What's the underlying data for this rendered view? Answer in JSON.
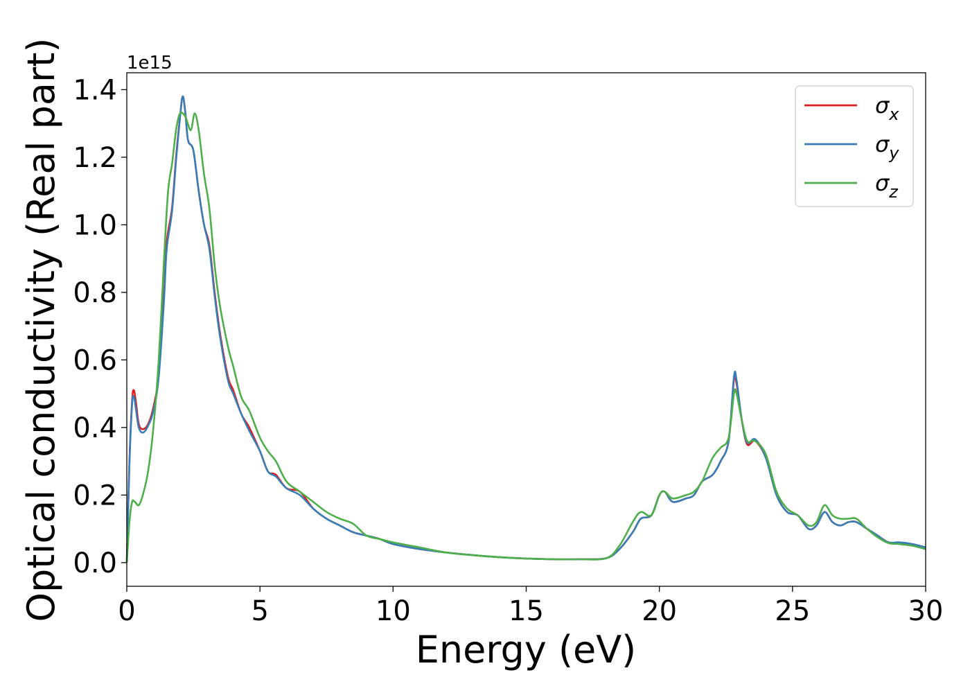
{
  "chart_data": {
    "type": "line",
    "title": "",
    "xlabel": "Energy (eV)",
    "ylabel": "Optical conductivity (Real part)",
    "y_offset_text": "1e15",
    "xlim": [
      0,
      30
    ],
    "ylim": [
      -0.07,
      1.45
    ],
    "y_scale_factor": 1000000000000000.0,
    "xticks": [
      "0",
      "5",
      "10",
      "15",
      "20",
      "25",
      "30"
    ],
    "xtick_values": [
      0,
      5,
      10,
      15,
      20,
      25,
      30
    ],
    "yticks": [
      "0.0",
      "0.2",
      "0.4",
      "0.6",
      "0.8",
      "1.0",
      "1.2",
      "1.4"
    ],
    "ytick_values": [
      0.0,
      0.2,
      0.4,
      0.6,
      0.8,
      1.0,
      1.2,
      1.4
    ],
    "grid": false,
    "legend_position": "top-right",
    "series": [
      {
        "name": "σx",
        "legend_base": "σ",
        "legend_sub": "x",
        "color": "#e41a1c",
        "points": [
          [
            0,
            0
          ],
          [
            0.1,
            0.3
          ],
          [
            0.2,
            0.48
          ],
          [
            0.27,
            0.51
          ],
          [
            0.35,
            0.47
          ],
          [
            0.45,
            0.41
          ],
          [
            0.6,
            0.395
          ],
          [
            0.8,
            0.41
          ],
          [
            1.0,
            0.46
          ],
          [
            1.2,
            0.56
          ],
          [
            1.4,
            0.8
          ],
          [
            1.5,
            0.95
          ],
          [
            1.7,
            1.05
          ],
          [
            1.85,
            1.2
          ],
          [
            2.0,
            1.32
          ],
          [
            2.1,
            1.38
          ],
          [
            2.2,
            1.33
          ],
          [
            2.3,
            1.25
          ],
          [
            2.5,
            1.22
          ],
          [
            2.7,
            1.1
          ],
          [
            2.9,
            1.0
          ],
          [
            3.1,
            0.94
          ],
          [
            3.3,
            0.8
          ],
          [
            3.5,
            0.68
          ],
          [
            3.8,
            0.55
          ],
          [
            4.0,
            0.51
          ],
          [
            4.3,
            0.44
          ],
          [
            4.6,
            0.4
          ],
          [
            5.0,
            0.33
          ],
          [
            5.3,
            0.27
          ],
          [
            5.6,
            0.26
          ],
          [
            6.0,
            0.22
          ],
          [
            6.5,
            0.21
          ],
          [
            7.0,
            0.16
          ],
          [
            7.5,
            0.13
          ],
          [
            8.0,
            0.11
          ],
          [
            8.5,
            0.09
          ],
          [
            9.0,
            0.08
          ],
          [
            9.5,
            0.07
          ],
          [
            10,
            0.055
          ],
          [
            11,
            0.04
          ],
          [
            12,
            0.03
          ],
          [
            13,
            0.022
          ],
          [
            14,
            0.016
          ],
          [
            15,
            0.012
          ],
          [
            16,
            0.01
          ],
          [
            17,
            0.01
          ],
          [
            18,
            0.013
          ],
          [
            18.5,
            0.04
          ],
          [
            19,
            0.09
          ],
          [
            19.3,
            0.13
          ],
          [
            19.7,
            0.14
          ],
          [
            20.0,
            0.2
          ],
          [
            20.2,
            0.21
          ],
          [
            20.5,
            0.18
          ],
          [
            21,
            0.19
          ],
          [
            21.3,
            0.2
          ],
          [
            21.6,
            0.24
          ],
          [
            22,
            0.26
          ],
          [
            22.3,
            0.3
          ],
          [
            22.6,
            0.36
          ],
          [
            22.8,
            0.54
          ],
          [
            22.9,
            0.53
          ],
          [
            23.1,
            0.42
          ],
          [
            23.3,
            0.35
          ],
          [
            23.6,
            0.36
          ],
          [
            24.0,
            0.31
          ],
          [
            24.4,
            0.2
          ],
          [
            24.8,
            0.15
          ],
          [
            25.2,
            0.14
          ],
          [
            25.6,
            0.1
          ],
          [
            25.9,
            0.11
          ],
          [
            26.2,
            0.15
          ],
          [
            26.5,
            0.12
          ],
          [
            26.8,
            0.11
          ],
          [
            27.1,
            0.12
          ],
          [
            27.4,
            0.12
          ],
          [
            27.8,
            0.1
          ],
          [
            28.2,
            0.08
          ],
          [
            28.6,
            0.06
          ],
          [
            29.0,
            0.058
          ],
          [
            29.5,
            0.055
          ],
          [
            30,
            0.045
          ]
        ]
      },
      {
        "name": "σy",
        "legend_base": "σ",
        "legend_sub": "y",
        "color": "#377eb8",
        "points": [
          [
            0,
            0
          ],
          [
            0.1,
            0.29
          ],
          [
            0.2,
            0.47
          ],
          [
            0.27,
            0.49
          ],
          [
            0.35,
            0.45
          ],
          [
            0.45,
            0.4
          ],
          [
            0.6,
            0.385
          ],
          [
            0.8,
            0.405
          ],
          [
            1.0,
            0.45
          ],
          [
            1.2,
            0.55
          ],
          [
            1.4,
            0.78
          ],
          [
            1.5,
            0.93
          ],
          [
            1.7,
            1.04
          ],
          [
            1.85,
            1.19
          ],
          [
            2.0,
            1.32
          ],
          [
            2.1,
            1.38
          ],
          [
            2.2,
            1.33
          ],
          [
            2.3,
            1.25
          ],
          [
            2.5,
            1.22
          ],
          [
            2.7,
            1.1
          ],
          [
            2.9,
            1.0
          ],
          [
            3.1,
            0.93
          ],
          [
            3.3,
            0.79
          ],
          [
            3.5,
            0.67
          ],
          [
            3.8,
            0.54
          ],
          [
            4.0,
            0.5
          ],
          [
            4.3,
            0.44
          ],
          [
            4.6,
            0.39
          ],
          [
            5.0,
            0.33
          ],
          [
            5.3,
            0.27
          ],
          [
            5.6,
            0.255
          ],
          [
            6.0,
            0.22
          ],
          [
            6.5,
            0.2
          ],
          [
            7.0,
            0.16
          ],
          [
            7.5,
            0.13
          ],
          [
            8.0,
            0.11
          ],
          [
            8.5,
            0.09
          ],
          [
            9.0,
            0.08
          ],
          [
            9.5,
            0.07
          ],
          [
            10,
            0.055
          ],
          [
            11,
            0.04
          ],
          [
            12,
            0.03
          ],
          [
            13,
            0.022
          ],
          [
            14,
            0.016
          ],
          [
            15,
            0.012
          ],
          [
            16,
            0.01
          ],
          [
            17,
            0.01
          ],
          [
            18,
            0.013
          ],
          [
            18.5,
            0.04
          ],
          [
            19,
            0.09
          ],
          [
            19.3,
            0.13
          ],
          [
            19.7,
            0.14
          ],
          [
            20.0,
            0.2
          ],
          [
            20.2,
            0.21
          ],
          [
            20.5,
            0.18
          ],
          [
            21,
            0.19
          ],
          [
            21.3,
            0.2
          ],
          [
            21.6,
            0.24
          ],
          [
            22,
            0.26
          ],
          [
            22.3,
            0.3
          ],
          [
            22.6,
            0.36
          ],
          [
            22.8,
            0.55
          ],
          [
            22.9,
            0.54
          ],
          [
            23.1,
            0.42
          ],
          [
            23.3,
            0.355
          ],
          [
            23.6,
            0.365
          ],
          [
            24.0,
            0.31
          ],
          [
            24.4,
            0.2
          ],
          [
            24.8,
            0.15
          ],
          [
            25.2,
            0.14
          ],
          [
            25.6,
            0.1
          ],
          [
            25.9,
            0.11
          ],
          [
            26.2,
            0.15
          ],
          [
            26.5,
            0.12
          ],
          [
            26.8,
            0.11
          ],
          [
            27.1,
            0.12
          ],
          [
            27.4,
            0.12
          ],
          [
            27.8,
            0.1
          ],
          [
            28.2,
            0.08
          ],
          [
            28.6,
            0.06
          ],
          [
            29.0,
            0.06
          ],
          [
            29.5,
            0.055
          ],
          [
            30,
            0.045
          ]
        ]
      },
      {
        "name": "σz",
        "legend_base": "σ",
        "legend_sub": "z",
        "color": "#4daf4a",
        "points": [
          [
            0,
            0
          ],
          [
            0.1,
            0.12
          ],
          [
            0.2,
            0.18
          ],
          [
            0.3,
            0.18
          ],
          [
            0.45,
            0.17
          ],
          [
            0.6,
            0.2
          ],
          [
            0.8,
            0.27
          ],
          [
            1.0,
            0.4
          ],
          [
            1.2,
            0.6
          ],
          [
            1.4,
            0.9
          ],
          [
            1.55,
            1.1
          ],
          [
            1.7,
            1.18
          ],
          [
            1.85,
            1.28
          ],
          [
            2.0,
            1.33
          ],
          [
            2.2,
            1.32
          ],
          [
            2.4,
            1.28
          ],
          [
            2.55,
            1.33
          ],
          [
            2.7,
            1.28
          ],
          [
            2.9,
            1.15
          ],
          [
            3.1,
            1.05
          ],
          [
            3.3,
            0.88
          ],
          [
            3.5,
            0.76
          ],
          [
            3.8,
            0.64
          ],
          [
            4.0,
            0.58
          ],
          [
            4.3,
            0.49
          ],
          [
            4.6,
            0.45
          ],
          [
            5.0,
            0.37
          ],
          [
            5.3,
            0.33
          ],
          [
            5.6,
            0.3
          ],
          [
            6.0,
            0.24
          ],
          [
            6.5,
            0.21
          ],
          [
            7.0,
            0.18
          ],
          [
            7.5,
            0.15
          ],
          [
            8.0,
            0.13
          ],
          [
            8.5,
            0.115
          ],
          [
            9.0,
            0.08
          ],
          [
            9.5,
            0.07
          ],
          [
            10,
            0.06
          ],
          [
            11,
            0.045
          ],
          [
            12,
            0.03
          ],
          [
            13,
            0.022
          ],
          [
            14,
            0.016
          ],
          [
            15,
            0.012
          ],
          [
            16,
            0.01
          ],
          [
            17,
            0.01
          ],
          [
            18,
            0.013
          ],
          [
            18.5,
            0.05
          ],
          [
            19,
            0.12
          ],
          [
            19.3,
            0.15
          ],
          [
            19.7,
            0.14
          ],
          [
            20.0,
            0.2
          ],
          [
            20.2,
            0.21
          ],
          [
            20.5,
            0.19
          ],
          [
            21,
            0.2
          ],
          [
            21.3,
            0.21
          ],
          [
            21.6,
            0.24
          ],
          [
            22,
            0.31
          ],
          [
            22.3,
            0.34
          ],
          [
            22.6,
            0.37
          ],
          [
            22.8,
            0.5
          ],
          [
            22.9,
            0.5
          ],
          [
            23.1,
            0.42
          ],
          [
            23.3,
            0.36
          ],
          [
            23.6,
            0.36
          ],
          [
            24.0,
            0.32
          ],
          [
            24.4,
            0.21
          ],
          [
            24.8,
            0.16
          ],
          [
            25.2,
            0.14
          ],
          [
            25.6,
            0.11
          ],
          [
            25.9,
            0.12
          ],
          [
            26.2,
            0.17
          ],
          [
            26.5,
            0.14
          ],
          [
            26.8,
            0.13
          ],
          [
            27.1,
            0.13
          ],
          [
            27.4,
            0.13
          ],
          [
            27.8,
            0.1
          ],
          [
            28.2,
            0.075
          ],
          [
            28.6,
            0.058
          ],
          [
            29.0,
            0.055
          ],
          [
            29.5,
            0.05
          ],
          [
            30,
            0.04
          ]
        ]
      }
    ]
  }
}
